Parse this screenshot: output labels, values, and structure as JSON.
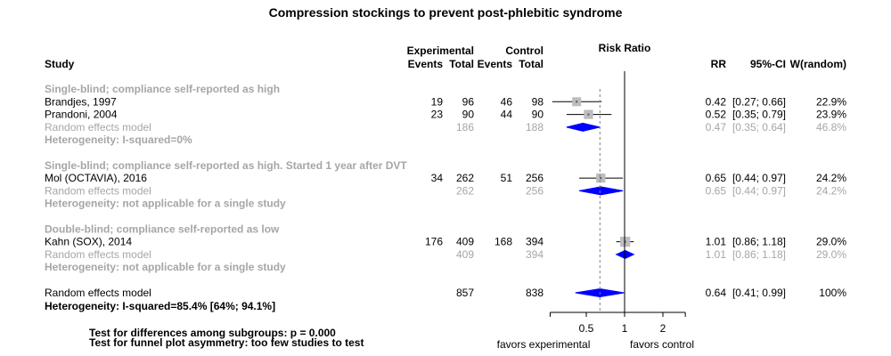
{
  "title": "Compression stockings to prevent post-phlebitic syndrome",
  "headers": {
    "study": "Study",
    "experimental": "Experimental",
    "control": "Control",
    "events": "Events",
    "total": "Total",
    "risk_ratio": "Risk Ratio",
    "rr": "RR",
    "ci": "95%-CI",
    "weight": "W(random)"
  },
  "colors": {
    "square": "#bdbdbd",
    "diamond": "#0000ff",
    "subgroup_text": "#a6a6a6",
    "ci_line": "#000000",
    "ref_line": "#000000",
    "pooled_line": "#808080"
  },
  "chart_data": {
    "type": "forest",
    "measure": "Risk Ratio",
    "x_scale": "log",
    "xlim": [
      0.26,
      3.0
    ],
    "x_ticks": [
      0.5,
      1,
      2
    ],
    "x_tick_labels": [
      "0.5",
      "1",
      "2"
    ],
    "reference_line": 1,
    "pooled_line": 0.64,
    "label_left": "favors experimental",
    "label_right": "favors control",
    "subgroups": [
      {
        "label": "Single-blind; compliance self-reported as high",
        "studies": [
          {
            "study": "Brandjes, 1997",
            "e_events": "19",
            "e_total": "96",
            "c_events": "46",
            "c_total": "98",
            "rr": 0.42,
            "lo": 0.27,
            "hi": 0.66,
            "rr_text": "0.42",
            "ci_text": "[0.27; 0.66]",
            "weight_text": "22.9%",
            "weight": 22.9
          },
          {
            "study": "Prandoni, 2004",
            "e_events": "23",
            "e_total": "90",
            "c_events": "44",
            "c_total": "90",
            "rr": 0.52,
            "lo": 0.35,
            "hi": 0.79,
            "rr_text": "0.52",
            "ci_text": "[0.35; 0.79]",
            "weight_text": "23.9%",
            "weight": 23.9
          }
        ],
        "pooled": {
          "label": "Random effects model",
          "e_total": "186",
          "c_total": "188",
          "rr": 0.47,
          "lo": 0.35,
          "hi": 0.64,
          "rr_text": "0.47",
          "ci_text": "[0.35; 0.64]",
          "weight_text": "46.8%"
        },
        "heterogeneity": "Heterogeneity: I-squared=0%"
      },
      {
        "label": "Single-blind; compliance self-reported as high. Started 1 year after DVT",
        "studies": [
          {
            "study": "Mol (OCTAVIA), 2016",
            "e_events": "34",
            "e_total": "262",
            "c_events": "51",
            "c_total": "256",
            "rr": 0.65,
            "lo": 0.44,
            "hi": 0.97,
            "rr_text": "0.65",
            "ci_text": "[0.44; 0.97]",
            "weight_text": "24.2%",
            "weight": 24.2
          }
        ],
        "pooled": {
          "label": "Random effects model",
          "e_total": "262",
          "c_total": "256",
          "rr": 0.65,
          "lo": 0.44,
          "hi": 0.97,
          "rr_text": "0.65",
          "ci_text": "[0.44; 0.97]",
          "weight_text": "24.2%"
        },
        "heterogeneity": "Heterogeneity: not applicable for a single study"
      },
      {
        "label": "Double-blind; compliance self-reported as low",
        "studies": [
          {
            "study": "Kahn (SOX), 2014",
            "e_events": "176",
            "e_total": "409",
            "c_events": "168",
            "c_total": "394",
            "rr": 1.01,
            "lo": 0.86,
            "hi": 1.18,
            "rr_text": "1.01",
            "ci_text": "[0.86; 1.18]",
            "weight_text": "29.0%",
            "weight": 29.0
          }
        ],
        "pooled": {
          "label": "Random effects model",
          "e_total": "409",
          "c_total": "394",
          "rr": 1.01,
          "lo": 0.86,
          "hi": 1.18,
          "rr_text": "1.01",
          "ci_text": "[0.86; 1.18]",
          "weight_text": "29.0%"
        },
        "heterogeneity": "Heterogeneity: not applicable for a single study"
      }
    ],
    "overall": {
      "label": "Random effects model",
      "e_total": "857",
      "c_total": "838",
      "rr": 0.64,
      "lo": 0.41,
      "hi": 0.99,
      "rr_text": "0.64",
      "ci_text": "[0.41; 0.99]",
      "weight_text": "100%",
      "heterogeneity": "Heterogeneity: I-squared=85.4% [64%; 94.1%]"
    },
    "tests": [
      "Test for differences among subgroups: p = 0.000",
      "Test for funnel plot asymmetry: too few studies to test"
    ]
  }
}
